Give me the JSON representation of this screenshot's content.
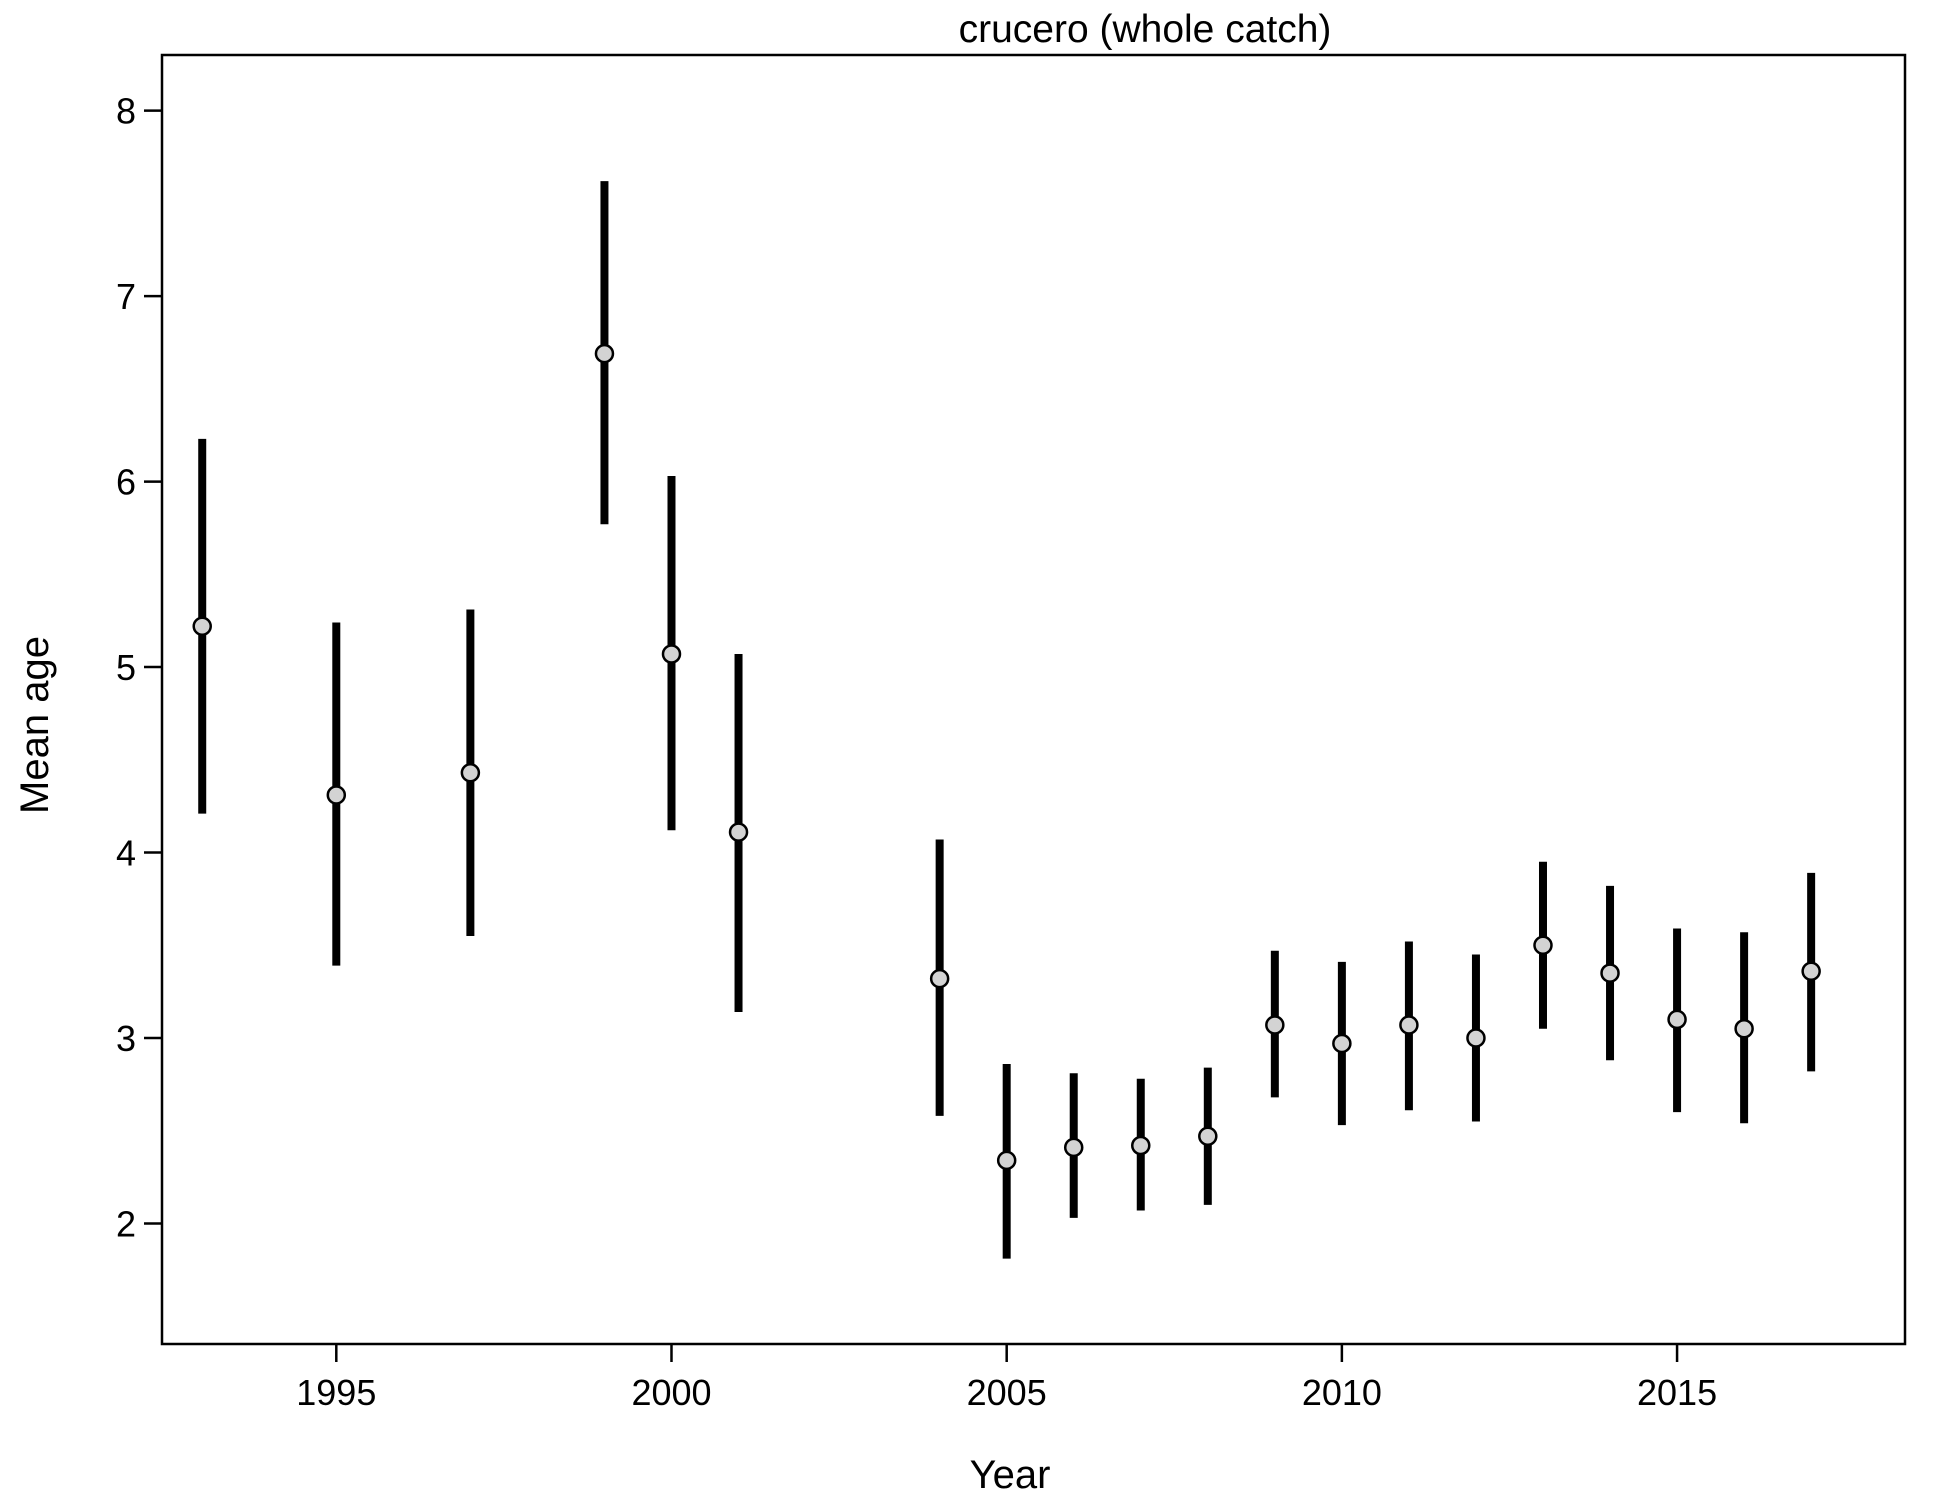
{
  "chart_data": {
    "type": "scatter",
    "title": "crucero (whole catch)",
    "xlabel": "Year",
    "ylabel": "Mean age",
    "xlim": [
      1992.4,
      2018.4
    ],
    "ylim": [
      1.35,
      8.3
    ],
    "xticks": [
      1995,
      2000,
      2005,
      2010,
      2015
    ],
    "yticks": [
      2,
      3,
      4,
      5,
      6,
      7,
      8
    ],
    "grid": false,
    "point_color": "#d3d3d3",
    "bar_color": "#000000",
    "series": [
      {
        "x": [
          1993,
          1995,
          1997,
          1999,
          2000,
          2001,
          2004,
          2005,
          2006,
          2007,
          2008,
          2009,
          2010,
          2011,
          2012,
          2013,
          2014,
          2015,
          2016,
          2017
        ],
        "y": [
          5.22,
          4.31,
          4.43,
          6.69,
          5.07,
          4.11,
          3.32,
          2.34,
          2.41,
          2.42,
          2.47,
          3.07,
          2.97,
          3.07,
          3.0,
          3.5,
          3.35,
          3.1,
          3.05,
          3.36
        ],
        "lower": [
          4.21,
          3.39,
          3.55,
          5.77,
          4.12,
          3.14,
          2.58,
          1.81,
          2.03,
          2.07,
          2.1,
          2.68,
          2.53,
          2.61,
          2.55,
          3.05,
          2.88,
          2.6,
          2.54,
          2.82
        ],
        "upper": [
          6.23,
          5.24,
          5.31,
          7.62,
          6.03,
          5.07,
          4.07,
          2.86,
          2.81,
          2.78,
          2.84,
          3.47,
          3.41,
          3.52,
          3.45,
          3.95,
          3.82,
          3.59,
          3.57,
          3.89
        ]
      }
    ]
  }
}
